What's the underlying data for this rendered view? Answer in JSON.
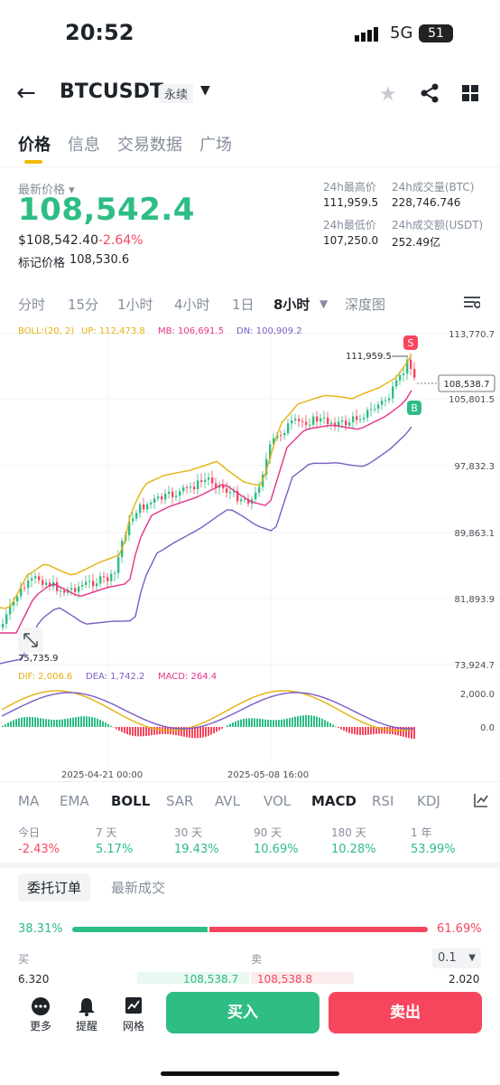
{
  "status": {
    "time": "20:52",
    "network": "5G",
    "battery": "51"
  },
  "header": {
    "symbol": "BTCUSDT",
    "contract": "永续"
  },
  "tabs": [
    "价格",
    "信息",
    "交易数据",
    "广场"
  ],
  "price": {
    "latest_label": "最新价格",
    "latest": "108,542.4",
    "usd": "$108,542.40",
    "change": "-2.64%",
    "mark_label": "标记价格",
    "mark": "108,530.6"
  },
  "stats": {
    "high_label": "24h最高价",
    "high": "111,959.5",
    "vol_btc_label": "24h成交量(BTC)",
    "vol_btc": "228,746.746",
    "low_label": "24h最低价",
    "low": "107,250.0",
    "vol_usdt_label": "24h成交额(USDT)",
    "vol_usdt": "252.49亿"
  },
  "intervals": [
    "分时",
    "15分",
    "1小时",
    "4小时",
    "1日",
    "8小时",
    "深度图"
  ],
  "chart_labels": {
    "boll": "BOLL:(20, 2)",
    "up": "UP: 112,473.8",
    "mb": "MB: 106,691.5",
    "dn": "DN: 100,909.2",
    "y1": "113,770.7",
    "y2": "105,801.5",
    "y3": "97,832.3",
    "y4": "89,863.1",
    "y5": "81,893.9",
    "y6": "73,924.7",
    "hi_marker": "111,959.5",
    "lo_marker": "75,735.9",
    "current": "108,538.7",
    "s": "S",
    "b": "B",
    "dif": "DIF: 2,006.6",
    "dea": "DEA: 1,742.2",
    "macd": "MACD: 264.4",
    "m1": "2,000.0",
    "m2": "0.0",
    "x1": "2025-04-21 00:00",
    "x2": "2025-05-08 16:00"
  },
  "indicators": [
    "MA",
    "EMA",
    "BOLL",
    "SAR",
    "AVL",
    "VOL",
    "MACD",
    "RSI",
    "KDJ"
  ],
  "performance": [
    {
      "label": "今日",
      "value": "-2.43%"
    },
    {
      "label": "7 天",
      "value": "5.17%"
    },
    {
      "label": "30 天",
      "value": "19.43%"
    },
    {
      "label": "90 天",
      "value": "10.69%"
    },
    {
      "label": "180 天",
      "value": "10.28%"
    },
    {
      "label": "1 年",
      "value": "53.99%"
    }
  ],
  "orderbook": {
    "tab_orders": "委托订单",
    "tab_trades": "最新成交",
    "buy_pct": "38.31%",
    "sell_pct": "61.69%",
    "buy": "买",
    "sell": "卖",
    "step": "0.1",
    "row_left": "6.320",
    "row_mid_left": "108,538.7",
    "row_mid_right": "108,538.8",
    "row_right": "2.020"
  },
  "bottom": {
    "more": "更多",
    "alert": "提醒",
    "grid": "网格",
    "buy": "买入",
    "sell": "卖出"
  },
  "colors": {
    "green": "#2ebd85",
    "red": "#f6465d",
    "yellow": "#f0b90b",
    "boll_up": "#e5b10d",
    "boll_mb": "#e6338a",
    "boll_dn": "#7b5cc4"
  }
}
